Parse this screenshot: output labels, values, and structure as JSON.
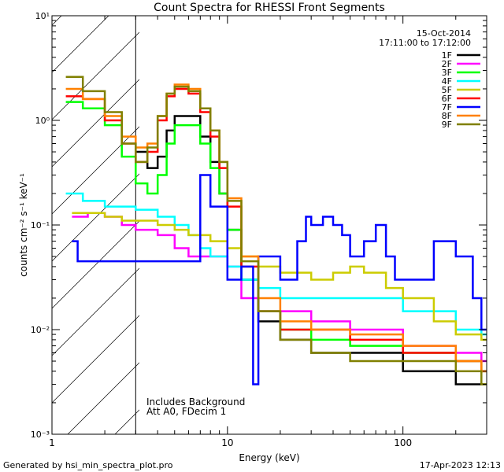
{
  "chart_data": {
    "type": "line",
    "title": "Count Spectra for RHESSI Front Segments",
    "xlabel": "Energy (keV)",
    "ylabel": "counts cm⁻² s⁻¹ keV⁻¹",
    "xscale": "log",
    "yscale": "log",
    "xlim": [
      1,
      300
    ],
    "ylim": [
      0.001,
      10
    ],
    "x_ticks": [
      {
        "value": 1,
        "label": "1"
      },
      {
        "value": 10,
        "label": "10"
      },
      {
        "value": 100,
        "label": "100"
      }
    ],
    "y_ticks": [
      {
        "value": 0.001,
        "label": "10⁻³"
      },
      {
        "value": 0.01,
        "label": "10⁻²"
      },
      {
        "value": 0.1,
        "label": "10⁻¹"
      },
      {
        "value": 1,
        "label": "10⁰"
      },
      {
        "value": 10,
        "label": "10¹"
      }
    ],
    "shaded_region": {
      "x_from": 1,
      "x_to": 3,
      "style": "hatched"
    },
    "legend_header": [
      "15-Oct-2014",
      "17:11:00 to 17:12:00"
    ],
    "annotations": [
      "Includes Background",
      "Att A0, FDecim 1"
    ],
    "series": [
      {
        "name": "1F",
        "color": "#000000",
        "points": [
          [
            3,
            0.5
          ],
          [
            3.5,
            0.35
          ],
          [
            4,
            0.45
          ],
          [
            4.5,
            0.8
          ],
          [
            5,
            1.1
          ],
          [
            6,
            1.1
          ],
          [
            7,
            0.7
          ],
          [
            8,
            0.4
          ],
          [
            9,
            0.2
          ],
          [
            10,
            0.09
          ],
          [
            12,
            0.03
          ],
          [
            15,
            0.012
          ],
          [
            20,
            0.008
          ],
          [
            30,
            0.006
          ],
          [
            50,
            0.006
          ],
          [
            100,
            0.004
          ],
          [
            200,
            0.003
          ],
          [
            280,
            0.003
          ]
        ]
      },
      {
        "name": "2F",
        "color": "#ff00ff",
        "points": [
          [
            1.3,
            0.12
          ],
          [
            1.6,
            0.13
          ],
          [
            2,
            0.12
          ],
          [
            2.5,
            0.1
          ],
          [
            3,
            0.09
          ],
          [
            4,
            0.08
          ],
          [
            5,
            0.06
          ],
          [
            6,
            0.05
          ],
          [
            8,
            0.05
          ],
          [
            9,
            0.05
          ],
          [
            10,
            0.04
          ],
          [
            12,
            0.02
          ],
          [
            15,
            0.015
          ],
          [
            20,
            0.015
          ],
          [
            30,
            0.012
          ],
          [
            50,
            0.01
          ],
          [
            100,
            0.007
          ],
          [
            200,
            0.006
          ],
          [
            280,
            0.005
          ]
        ]
      },
      {
        "name": "3F",
        "color": "#00ff00",
        "points": [
          [
            1.2,
            1.5
          ],
          [
            1.5,
            1.3
          ],
          [
            2,
            0.9
          ],
          [
            2.5,
            0.45
          ],
          [
            3,
            0.25
          ],
          [
            3.5,
            0.2
          ],
          [
            4,
            0.3
          ],
          [
            4.5,
            0.6
          ],
          [
            5,
            0.9
          ],
          [
            6,
            0.9
          ],
          [
            7,
            0.6
          ],
          [
            8,
            0.35
          ],
          [
            9,
            0.2
          ],
          [
            10,
            0.09
          ],
          [
            12,
            0.03
          ],
          [
            15,
            0.015
          ],
          [
            20,
            0.01
          ],
          [
            30,
            0.008
          ],
          [
            50,
            0.007
          ],
          [
            100,
            0.006
          ],
          [
            200,
            0.005
          ],
          [
            280,
            0.004
          ]
        ]
      },
      {
        "name": "4F",
        "color": "#00ffff",
        "points": [
          [
            1.2,
            0.2
          ],
          [
            1.5,
            0.17
          ],
          [
            2,
            0.15
          ],
          [
            2.5,
            0.15
          ],
          [
            3,
            0.14
          ],
          [
            4,
            0.12
          ],
          [
            5,
            0.1
          ],
          [
            6,
            0.08
          ],
          [
            7,
            0.06
          ],
          [
            8,
            0.05
          ],
          [
            10,
            0.04
          ],
          [
            12,
            0.03
          ],
          [
            15,
            0.025
          ],
          [
            20,
            0.02
          ],
          [
            30,
            0.02
          ],
          [
            50,
            0.02
          ],
          [
            100,
            0.015
          ],
          [
            200,
            0.01
          ],
          [
            280,
            0.009
          ]
        ]
      },
      {
        "name": "5F",
        "color": "#cccc00",
        "points": [
          [
            1.3,
            0.13
          ],
          [
            1.6,
            0.13
          ],
          [
            2,
            0.12
          ],
          [
            2.5,
            0.11
          ],
          [
            3,
            0.11
          ],
          [
            4,
            0.1
          ],
          [
            5,
            0.09
          ],
          [
            6,
            0.08
          ],
          [
            8,
            0.07
          ],
          [
            10,
            0.06
          ],
          [
            12,
            0.05
          ],
          [
            15,
            0.04
          ],
          [
            20,
            0.035
          ],
          [
            30,
            0.03
          ],
          [
            40,
            0.035
          ],
          [
            50,
            0.04
          ],
          [
            60,
            0.035
          ],
          [
            80,
            0.025
          ],
          [
            100,
            0.02
          ],
          [
            150,
            0.012
          ],
          [
            200,
            0.009
          ],
          [
            280,
            0.008
          ]
        ]
      },
      {
        "name": "6F",
        "color": "#ff0000",
        "points": [
          [
            1.2,
            1.7
          ],
          [
            1.5,
            1.6
          ],
          [
            2,
            1.0
          ],
          [
            2.5,
            0.6
          ],
          [
            3,
            0.4
          ],
          [
            3.5,
            0.5
          ],
          [
            4,
            1.0
          ],
          [
            4.5,
            1.7
          ],
          [
            5,
            2.0
          ],
          [
            6,
            1.8
          ],
          [
            7,
            1.2
          ],
          [
            8,
            0.7
          ],
          [
            9,
            0.35
          ],
          [
            10,
            0.15
          ],
          [
            12,
            0.04
          ],
          [
            15,
            0.015
          ],
          [
            20,
            0.01
          ],
          [
            30,
            0.01
          ],
          [
            50,
            0.008
          ],
          [
            100,
            0.006
          ],
          [
            200,
            0.005
          ],
          [
            280,
            0.004
          ]
        ]
      },
      {
        "name": "7F",
        "color": "#0000ff",
        "points": [
          [
            1.3,
            0.07
          ],
          [
            1.4,
            0.045
          ],
          [
            1.6,
            0.045
          ],
          [
            7,
            0.3
          ],
          [
            8,
            0.15
          ],
          [
            10,
            0.03
          ],
          [
            12,
            0.04
          ],
          [
            14,
            0.003
          ],
          [
            15,
            0.05
          ],
          [
            20,
            0.03
          ],
          [
            25,
            0.07
          ],
          [
            28,
            0.12
          ],
          [
            30,
            0.1
          ],
          [
            35,
            0.12
          ],
          [
            40,
            0.1
          ],
          [
            45,
            0.08
          ],
          [
            50,
            0.05
          ],
          [
            60,
            0.07
          ],
          [
            70,
            0.1
          ],
          [
            80,
            0.05
          ],
          [
            90,
            0.03
          ],
          [
            100,
            0.03
          ],
          [
            150,
            0.07
          ],
          [
            200,
            0.05
          ],
          [
            250,
            0.02
          ],
          [
            280,
            0.01
          ]
        ]
      },
      {
        "name": "8F",
        "color": "#ff8000",
        "points": [
          [
            1.2,
            2.0
          ],
          [
            1.5,
            1.6
          ],
          [
            2,
            1.1
          ],
          [
            2.5,
            0.7
          ],
          [
            3,
            0.55
          ],
          [
            3.5,
            0.6
          ],
          [
            4,
            1.1
          ],
          [
            4.5,
            1.8
          ],
          [
            5,
            2.2
          ],
          [
            6,
            2.0
          ],
          [
            7,
            1.3
          ],
          [
            8,
            0.8
          ],
          [
            9,
            0.4
          ],
          [
            10,
            0.18
          ],
          [
            12,
            0.05
          ],
          [
            15,
            0.02
          ],
          [
            20,
            0.012
          ],
          [
            30,
            0.01
          ],
          [
            50,
            0.009
          ],
          [
            100,
            0.007
          ],
          [
            200,
            0.005
          ],
          [
            280,
            0.004
          ]
        ]
      },
      {
        "name": "9F",
        "color": "#808000",
        "points": [
          [
            1.2,
            2.6
          ],
          [
            1.5,
            1.9
          ],
          [
            2,
            1.2
          ],
          [
            2.5,
            0.6
          ],
          [
            3,
            0.4
          ],
          [
            3.5,
            0.55
          ],
          [
            4,
            1.1
          ],
          [
            4.5,
            1.8
          ],
          [
            5,
            2.1
          ],
          [
            6,
            1.9
          ],
          [
            7,
            1.3
          ],
          [
            8,
            0.8
          ],
          [
            9,
            0.4
          ],
          [
            10,
            0.17
          ],
          [
            12,
            0.045
          ],
          [
            15,
            0.015
          ],
          [
            20,
            0.008
          ],
          [
            30,
            0.006
          ],
          [
            50,
            0.005
          ],
          [
            100,
            0.005
          ],
          [
            200,
            0.004
          ],
          [
            280,
            0.003
          ]
        ]
      }
    ]
  },
  "footer": {
    "left": "Generated by hsi_min_spectra_plot.pro",
    "right": "17-Apr-2023 12:13"
  }
}
